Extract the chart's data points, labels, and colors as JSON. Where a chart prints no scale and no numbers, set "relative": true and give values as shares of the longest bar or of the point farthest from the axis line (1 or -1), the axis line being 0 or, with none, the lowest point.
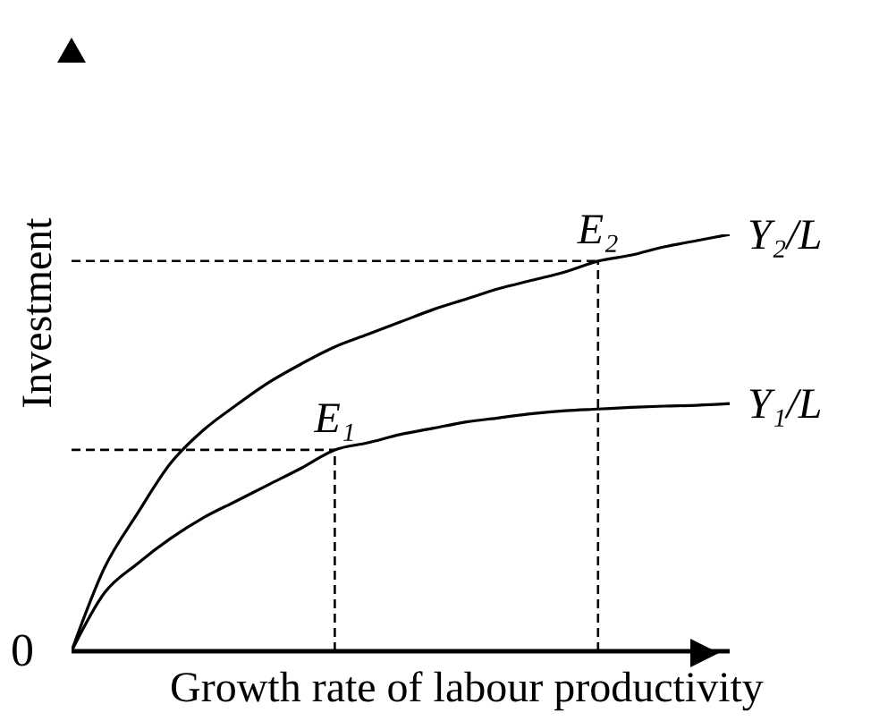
{
  "chart_data": {
    "type": "line",
    "relative": true,
    "xlabel": "Growth rate of labour productivity",
    "ylabel": "Investment",
    "categories": [
      null,
      null,
      null,
      null,
      null,
      null,
      null,
      null,
      null,
      null,
      null,
      null,
      null,
      null,
      null,
      null,
      null,
      null,
      null,
      null,
      null
    ],
    "series": [
      {
        "name": "Y₂/L",
        "color": "#000000",
        "values": [
          0,
          0.2,
          0.33,
          0.45,
          0.53,
          0.59,
          0.645,
          0.69,
          0.73,
          0.76,
          0.79,
          0.82,
          0.845,
          0.87,
          0.89,
          0.91,
          0.936,
          0.95,
          0.97,
          0.985,
          1
        ]
      },
      {
        "name": "Y₁/L",
        "color": "#000000",
        "values": [
          0,
          0.14,
          0.21,
          0.27,
          0.32,
          0.36,
          0.4,
          0.44,
          0.483,
          0.5,
          0.52,
          0.535,
          0.55,
          0.56,
          0.57,
          0.577,
          0.581,
          0.585,
          0.588,
          0.59,
          0.594
        ]
      }
    ],
    "ref_lines": [
      {
        "axis": "y",
        "value": 0.483,
        "line_style": "dashed"
      },
      {
        "axis": "y",
        "value": 0.936,
        "line_style": "dashed"
      }
    ],
    "annotations": [
      "0",
      {
        "text": "E₁",
        "y": 0.483
      },
      {
        "text": "E₂",
        "y": 0.936
      }
    ],
    "legend": false,
    "grid": false,
    "marker": "none",
    "line_style": "solid"
  }
}
